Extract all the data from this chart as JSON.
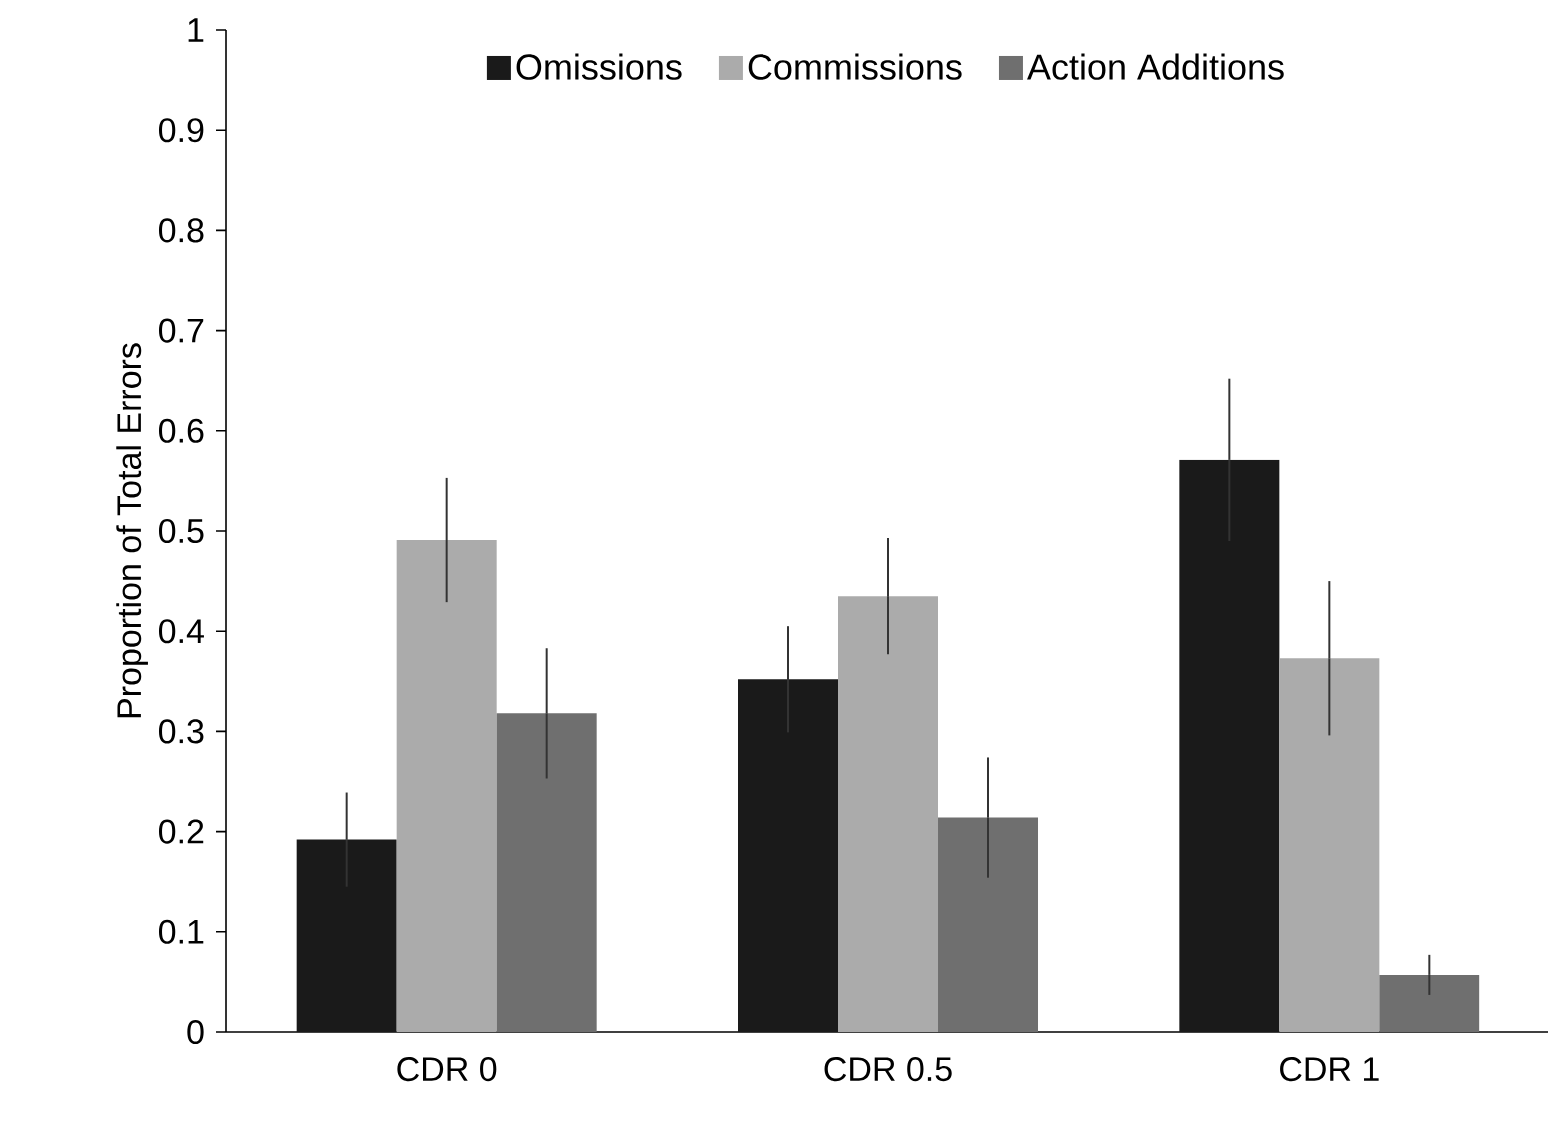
{
  "chart_data": {
    "type": "bar",
    "ylabel": "Proportion of Total Errors",
    "categories": [
      "CDR 0",
      "CDR 0.5",
      "CDR 1"
    ],
    "series": [
      {
        "name": "Omissions",
        "color": "#1a1a1a",
        "values": [
          0.192,
          0.352,
          0.571
        ],
        "errors": [
          0.047,
          0.053,
          0.081
        ]
      },
      {
        "name": "Commissions",
        "color": "#ababab",
        "values": [
          0.491,
          0.435,
          0.373
        ],
        "errors": [
          0.062,
          0.058,
          0.077
        ]
      },
      {
        "name": "Action Additions",
        "color": "#6f6f6f",
        "values": [
          0.318,
          0.214,
          0.057
        ],
        "errors": [
          0.065,
          0.06,
          0.02
        ]
      }
    ],
    "ylim": [
      0,
      1
    ],
    "yticks": [
      0,
      0.1,
      0.2,
      0.3,
      0.4,
      0.5,
      0.6,
      0.7,
      0.8,
      0.9,
      1
    ],
    "legend": "top",
    "grid": false
  }
}
